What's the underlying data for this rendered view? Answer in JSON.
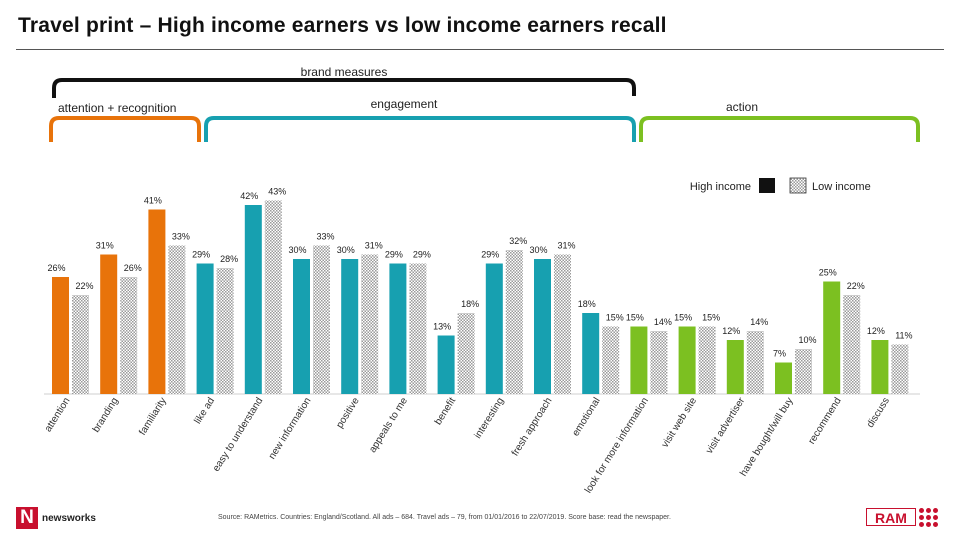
{
  "title": "Travel print – High income earners vs low income earners recall",
  "groups": {
    "brand": "brand measures",
    "attention": "attention + recognition",
    "engagement": "engagement",
    "action": "action"
  },
  "legend": {
    "high": "High income",
    "low": "Low income"
  },
  "colors": {
    "attention": "#e8730a",
    "engagement": "#17a0b0",
    "action": "#7cc021",
    "low": "#cccccc",
    "bracket_top": "#111111"
  },
  "footer": {
    "logo_mark": "N",
    "logo_text": "newsworks",
    "source": "Source: RAMetrics. Countries: England/Scotland. All ads – 684. Travel ads – 79, from 01/01/2016 to 22/07/2019. Score base: read the newspaper.",
    "ram": "RAM"
  },
  "chart_data": {
    "type": "bar",
    "categories": [
      "attention",
      "branding",
      "familiarity",
      "like ad",
      "easy to understand",
      "new information",
      "positive",
      "appeals to me",
      "benefit",
      "interesting",
      "fresh approach",
      "emotional",
      "look for more information",
      "visit web site",
      "visit advertiser",
      "have bought/will buy",
      "recommend",
      "discuss"
    ],
    "category_groups": [
      "attention",
      "attention",
      "attention",
      "engagement",
      "engagement",
      "engagement",
      "engagement",
      "engagement",
      "engagement",
      "engagement",
      "engagement",
      "engagement",
      "action",
      "action",
      "action",
      "action",
      "action",
      "action"
    ],
    "series": [
      {
        "name": "High income",
        "values": [
          26,
          31,
          41,
          29,
          42,
          30,
          30,
          29,
          13,
          29,
          30,
          18,
          15,
          15,
          12,
          7,
          25,
          12
        ]
      },
      {
        "name": "Low income",
        "values": [
          22,
          26,
          33,
          28,
          43,
          33,
          31,
          29,
          18,
          32,
          31,
          15,
          14,
          15,
          14,
          10,
          22,
          11
        ]
      }
    ],
    "ylim": [
      0,
      50
    ],
    "grid": false,
    "legend_position": "top-right",
    "value_suffix": "%"
  }
}
